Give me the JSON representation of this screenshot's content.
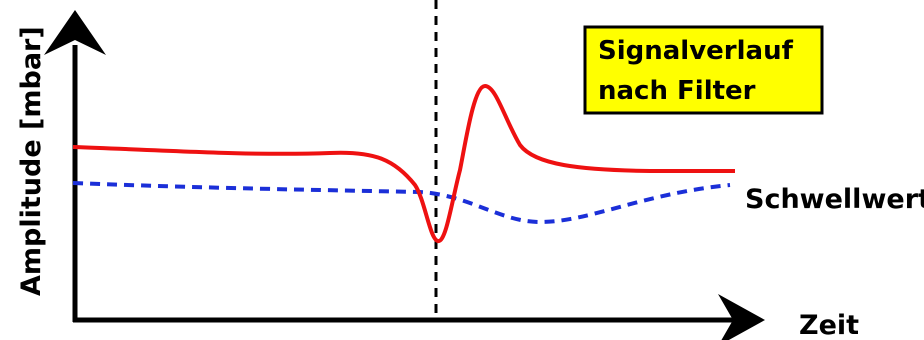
{
  "title_box": {
    "line1": "Signalverlauf",
    "line2": "nach Filter"
  },
  "axes": {
    "y_label": "Amplitude [mbar]",
    "x_label": "Zeit"
  },
  "threshold_label": "Schwellwert",
  "colors": {
    "signal": "#ee1111",
    "threshold": "#1b2fd8",
    "box_fill": "#ffff00",
    "axis": "#000000"
  }
}
